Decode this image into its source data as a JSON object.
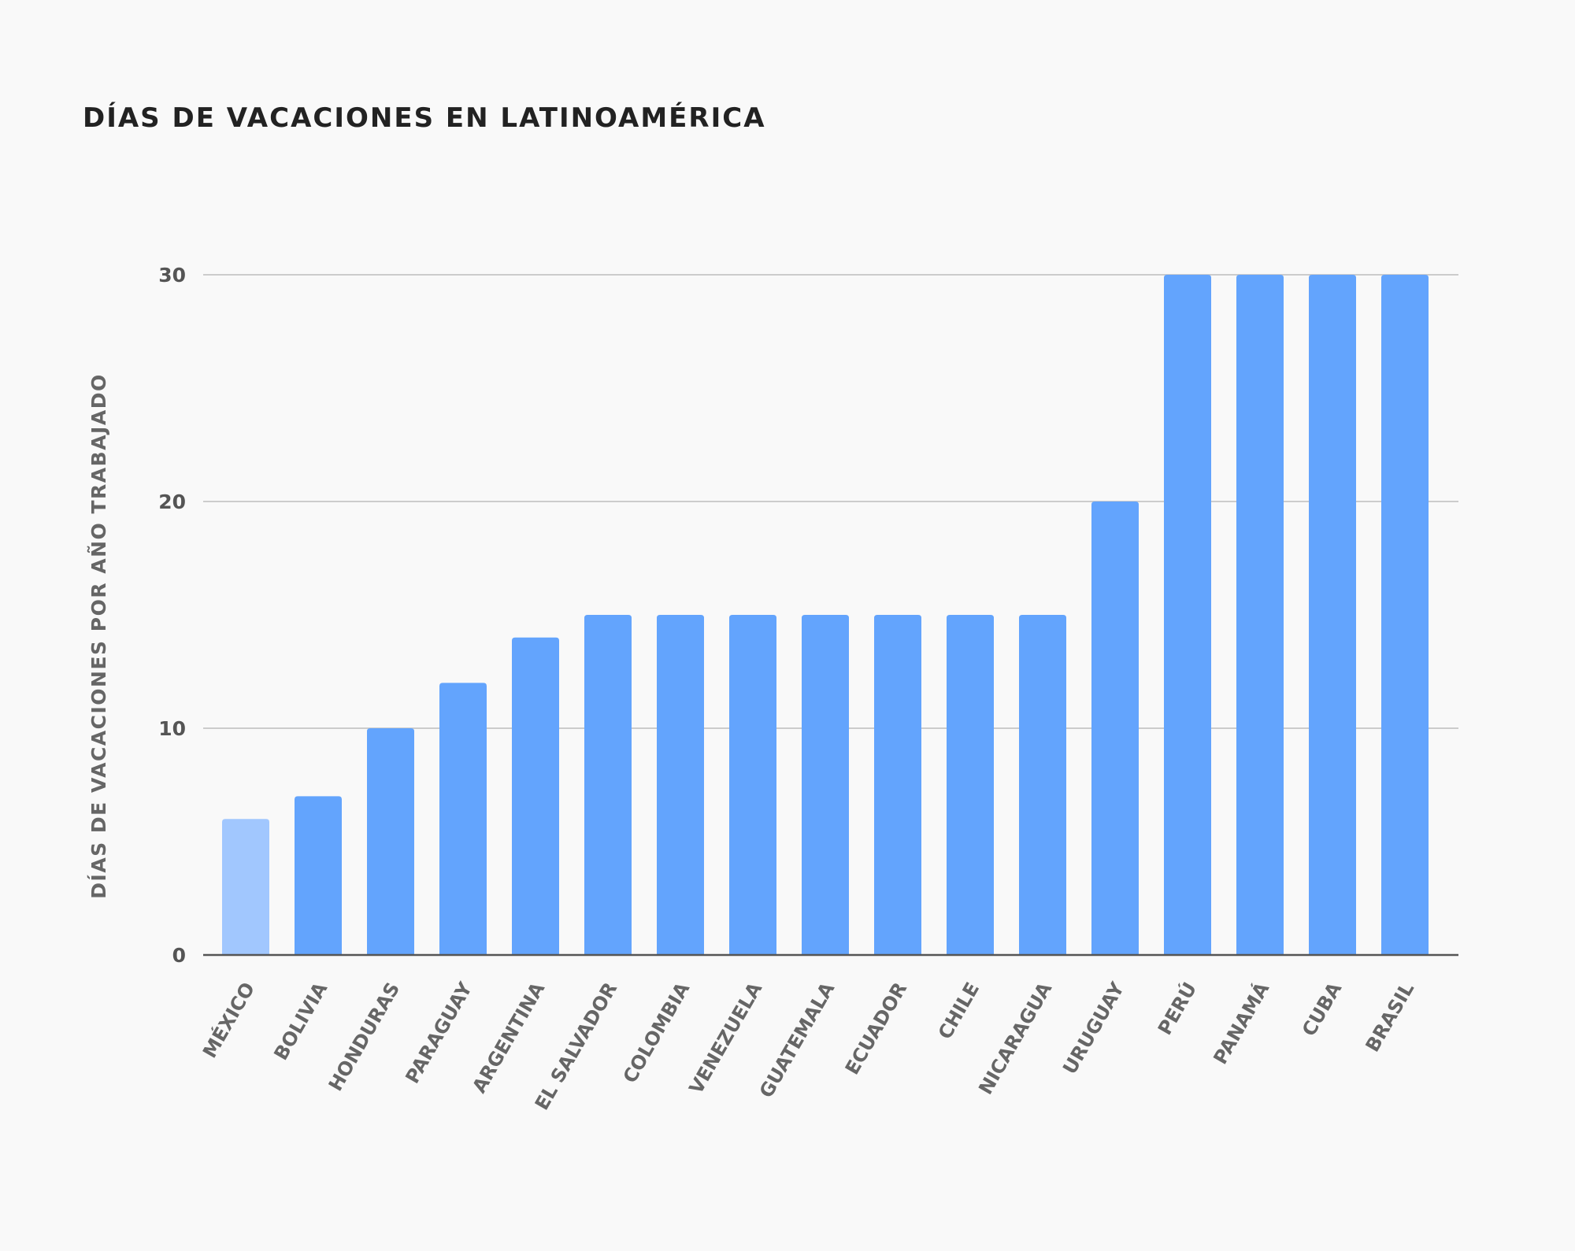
{
  "chart_data": {
    "type": "bar",
    "title": "DÍAS DE VACACIONES EN LATINOAMÉRICA",
    "xlabel": "",
    "ylabel": "DÍAS DE VACACIONES POR AÑO TRABAJADO",
    "categories": [
      "MÉXICO",
      "BOLIVIA",
      "HONDURAS",
      "PARAGUAY",
      "ARGENTINA",
      "EL SALVADOR",
      "COLOMBIA",
      "VENEZUELA",
      "GUATEMALA",
      "ECUADOR",
      "CHILE",
      "NICARAGUA",
      "URUGUAY",
      "PERÚ",
      "PANAMÁ",
      "CUBA",
      "BRASIL"
    ],
    "values": [
      6,
      7,
      10,
      12,
      14,
      15,
      15,
      15,
      15,
      15,
      15,
      15,
      20,
      30,
      30,
      30,
      30
    ],
    "yticks": [
      0,
      10,
      20,
      30
    ],
    "ylim": [
      0,
      30
    ],
    "grid": true,
    "legend": "none",
    "colors": {
      "bar": "#63a4fd",
      "highlight_bar": "#a1c7fe",
      "grid": "#cccccc",
      "axis": "#555555"
    },
    "highlight_category": "MÉXICO"
  }
}
